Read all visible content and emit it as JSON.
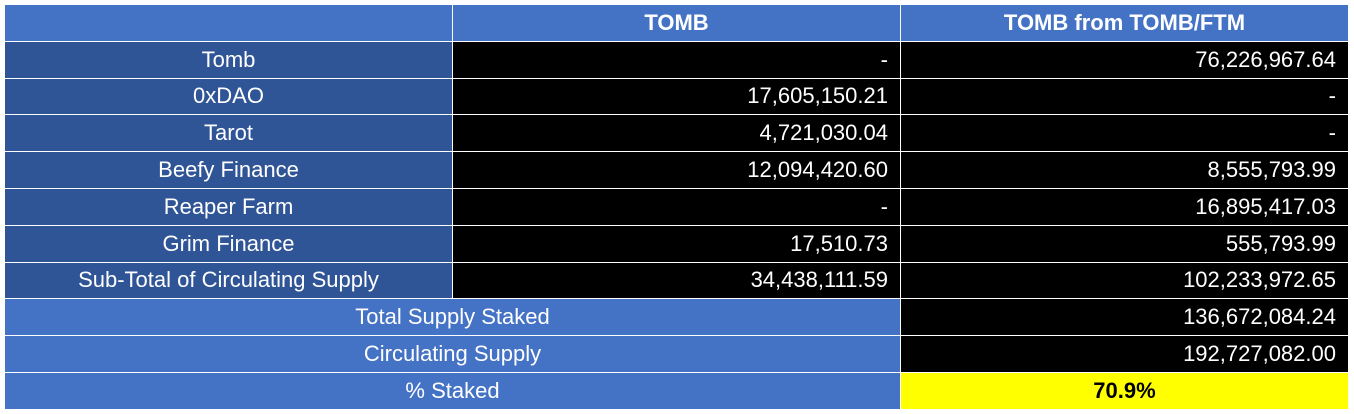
{
  "header": {
    "corner": "",
    "col1": "TOMB",
    "col2": "TOMB from TOMB/FTM"
  },
  "rows": [
    {
      "label": "Tomb",
      "tomb": "-",
      "tomb_ftm": "76,226,967.64"
    },
    {
      "label": "0xDAO",
      "tomb": "17,605,150.21",
      "tomb_ftm": "-"
    },
    {
      "label": "Tarot",
      "tomb": "4,721,030.04",
      "tomb_ftm": "-"
    },
    {
      "label": "Beefy Finance",
      "tomb": "12,094,420.60",
      "tomb_ftm": "8,555,793.99"
    },
    {
      "label": "Reaper Farm",
      "tomb": "-",
      "tomb_ftm": "16,895,417.03"
    },
    {
      "label": "Grim Finance",
      "tomb": "17,510.73",
      "tomb_ftm": "555,793.99"
    },
    {
      "label": "Sub-Total of Circulating Supply",
      "tomb": "34,438,111.59",
      "tomb_ftm": "102,233,972.65"
    }
  ],
  "summary": {
    "total_staked_label": "Total Supply Staked",
    "total_staked_value": "136,672,084.24",
    "circulating_label": "Circulating Supply",
    "circulating_value": "192,727,082.00",
    "pct_label": "% Staked",
    "pct_value": "70.9%"
  },
  "colors": {
    "header_blue": "#4472c4",
    "label_blue": "#2f5597",
    "value_black": "#000000",
    "highlight_yellow": "#ffff00"
  }
}
